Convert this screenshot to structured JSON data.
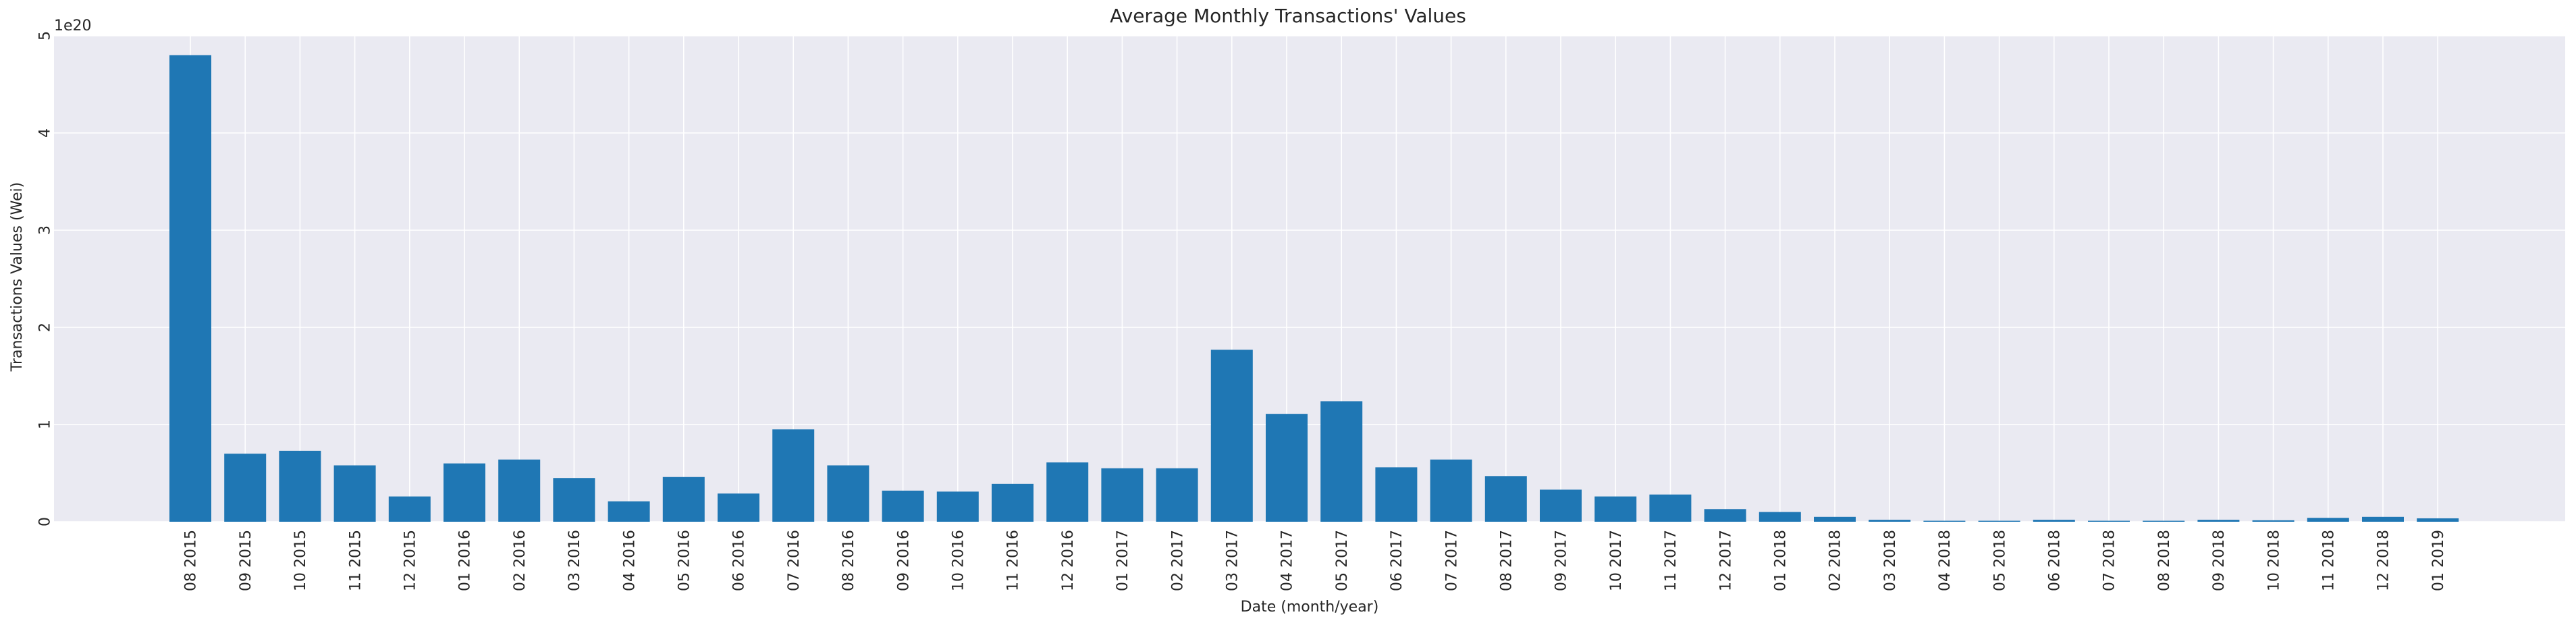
{
  "chart_data": {
    "type": "bar",
    "title": "Average Monthly Transactions' Values",
    "xlabel": "Date (month/year)",
    "ylabel": "Transactions Values (Wei)",
    "y_offset_text": "1e20",
    "y_scale": 1e+20,
    "ylim": [
      0,
      5
    ],
    "yticks": [
      0,
      1,
      2,
      3,
      4,
      5
    ],
    "grid": true,
    "bar_color": "#1f77b4",
    "background_color": "#eaeaf2",
    "grid_color": "#ffffff",
    "categories": [
      "08 2015",
      "09 2015",
      "10 2015",
      "11 2015",
      "12 2015",
      "01 2016",
      "02 2016",
      "03 2016",
      "04 2016",
      "05 2016",
      "06 2016",
      "07 2016",
      "08 2016",
      "09 2016",
      "10 2016",
      "11 2016",
      "12 2016",
      "01 2017",
      "02 2017",
      "03 2017",
      "04 2017",
      "05 2017",
      "06 2017",
      "07 2017",
      "08 2017",
      "09 2017",
      "10 2017",
      "11 2017",
      "12 2017",
      "01 2018",
      "02 2018",
      "03 2018",
      "04 2018",
      "05 2018",
      "06 2018",
      "07 2018",
      "08 2018",
      "09 2018",
      "10 2018",
      "11 2018",
      "12 2018",
      "01 2019"
    ],
    "values": [
      4.8,
      0.7,
      0.73,
      0.58,
      0.26,
      0.6,
      0.64,
      0.45,
      0.21,
      0.46,
      0.29,
      0.95,
      0.58,
      0.32,
      0.31,
      0.39,
      0.61,
      0.55,
      0.55,
      1.77,
      1.11,
      1.24,
      0.56,
      0.64,
      0.47,
      0.33,
      0.26,
      0.28,
      0.13,
      0.1,
      0.05,
      0.02,
      0.01,
      0.01,
      0.02,
      0.01,
      0.01,
      0.02,
      0.015,
      0.04,
      0.05,
      0.035
    ]
  }
}
